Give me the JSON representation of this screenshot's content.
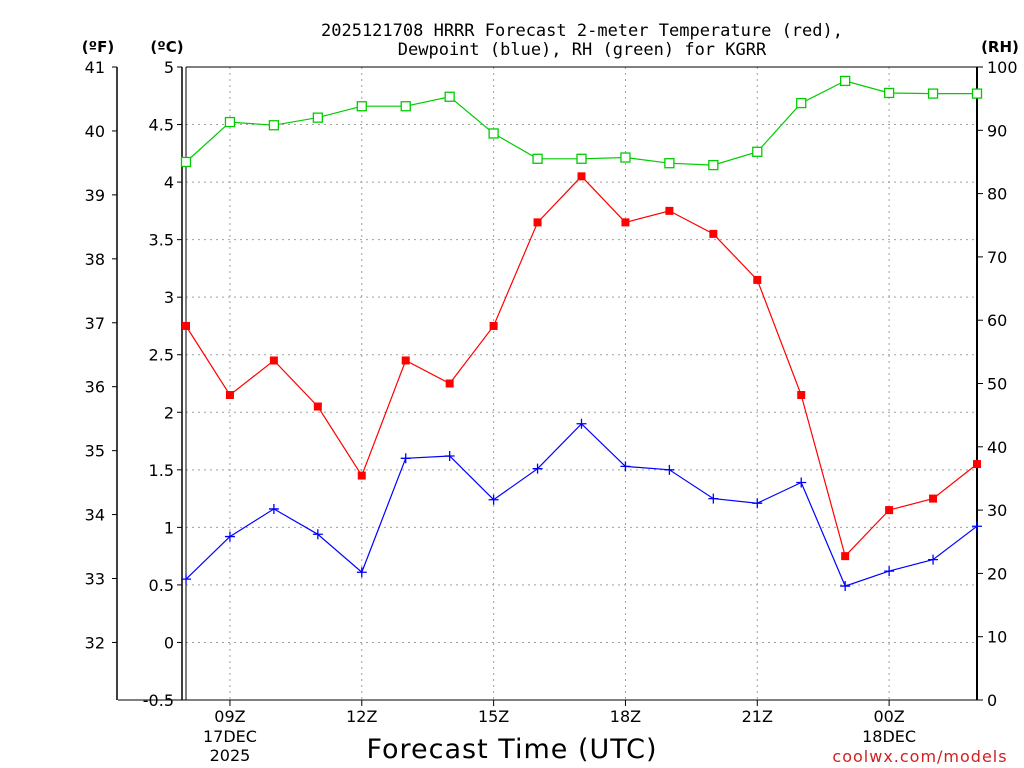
{
  "chart_data": {
    "type": "line",
    "title_line1": "2025121708 HRRR Forecast 2-meter Temperature (red),",
    "title_line2": "Dewpoint (blue), RH (green) for KGRR",
    "xlabel": "Forecast Time (UTC)",
    "watermark": "coolwx.com/models",
    "units": {
      "fahrenheit": "(ºF)",
      "celsius": "(ºC)",
      "rh": "(RH)"
    },
    "x_hours": [
      8,
      9,
      10,
      11,
      12,
      13,
      14,
      15,
      16,
      17,
      18,
      19,
      20,
      21,
      22,
      23,
      24,
      25,
      26
    ],
    "xlim": [
      8,
      26
    ],
    "x_ticks": [
      {
        "hour": 9,
        "label": "09Z",
        "date": "17DEC",
        "year": "2025"
      },
      {
        "hour": 12,
        "label": "12Z"
      },
      {
        "hour": 15,
        "label": "15Z"
      },
      {
        "hour": 18,
        "label": "18Z"
      },
      {
        "hour": 21,
        "label": "21Z"
      },
      {
        "hour": 24,
        "label": "00Z",
        "date": "18DEC"
      }
    ],
    "celsius_axis": {
      "ylim": [
        -0.5,
        5
      ],
      "ticks": [
        "-0.5",
        "0",
        "0.5",
        "1",
        "1.5",
        "2",
        "2.5",
        "3",
        "3.5",
        "4",
        "4.5",
        "5"
      ]
    },
    "fahrenheit_ticks": [
      "32",
      "33",
      "34",
      "35",
      "36",
      "37",
      "38",
      "39",
      "40",
      "41"
    ],
    "rh_axis": {
      "ylim": [
        0,
        100
      ],
      "ticks": [
        "0",
        "10",
        "20",
        "30",
        "40",
        "50",
        "60",
        "70",
        "80",
        "90",
        "100"
      ]
    },
    "series": [
      {
        "name": "Temperature",
        "unit": "C",
        "color": "#ff0000",
        "marker": "filled-square",
        "values": [
          2.75,
          2.15,
          2.45,
          2.05,
          1.45,
          2.45,
          2.25,
          2.75,
          3.65,
          4.05,
          3.65,
          3.75,
          3.55,
          3.15,
          2.15,
          0.75,
          1.15,
          1.25,
          1.55
        ]
      },
      {
        "name": "Dewpoint",
        "unit": "C",
        "color": "#0000ff",
        "marker": "plus",
        "values": [
          0.55,
          0.92,
          1.16,
          0.94,
          0.61,
          1.6,
          1.62,
          1.24,
          1.51,
          1.9,
          1.53,
          1.5,
          1.25,
          1.21,
          1.39,
          0.49,
          0.62,
          0.72,
          1.01
        ]
      },
      {
        "name": "RH",
        "unit": "%",
        "color": "#00cc00",
        "marker": "open-square",
        "values": [
          85,
          91.3,
          90.8,
          92,
          93.8,
          93.8,
          95.3,
          89.5,
          85.5,
          85.5,
          85.7,
          84.8,
          84.5,
          86.6,
          94.3,
          97.8,
          95.9,
          95.8,
          95.8
        ]
      }
    ]
  }
}
